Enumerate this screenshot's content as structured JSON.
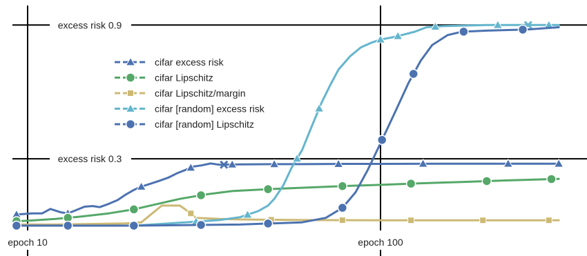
{
  "chart_data": {
    "type": "line",
    "x_scale": "log",
    "x_ticks": [
      {
        "value": 10,
        "label": "epoch 10"
      },
      {
        "value": 100,
        "label": "epoch 100"
      }
    ],
    "ylim": [
      0,
      1
    ],
    "reference_lines": [
      {
        "y": 0.9,
        "label": "excess risk 0.9"
      },
      {
        "y": 0.3,
        "label": "excess risk 0.3"
      }
    ],
    "legend_position": "upper-left",
    "series": [
      {
        "name": "cifar excess risk",
        "color": "#4c72b0",
        "marker": "triangle",
        "dashed": true,
        "points": [
          [
            9.3,
            0.05
          ],
          [
            10.3,
            0.055
          ],
          [
            11,
            0.055
          ],
          [
            11.6,
            0.075
          ],
          [
            12.4,
            0.06
          ],
          [
            13,
            0.055
          ],
          [
            13.5,
            0.065
          ],
          [
            14.5,
            0.085
          ],
          [
            15.3,
            0.088
          ],
          [
            16,
            0.083
          ],
          [
            17,
            0.098
          ],
          [
            18,
            0.115
          ],
          [
            19,
            0.14
          ],
          [
            20,
            0.16
          ],
          [
            21,
            0.175
          ],
          [
            22,
            0.185
          ],
          [
            23.5,
            0.2
          ],
          [
            25,
            0.215
          ],
          [
            26.5,
            0.235
          ],
          [
            28,
            0.25
          ],
          [
            29.5,
            0.265
          ],
          [
            31,
            0.27
          ],
          [
            33,
            0.279
          ],
          [
            35,
            0.273
          ],
          [
            40,
            0.275
          ],
          [
            50,
            0.276
          ],
          [
            60,
            0.276
          ],
          [
            80,
            0.277
          ],
          [
            100,
            0.277
          ],
          [
            150,
            0.278
          ],
          [
            250,
            0.278
          ],
          [
            320,
            0.278
          ]
        ],
        "markers_at": [
          9.3,
          13,
          21,
          29,
          38,
          50,
          76,
          132,
          230,
          320
        ],
        "cross_at": 36
      },
      {
        "name": "cifar Lipschitz",
        "color": "#55a868",
        "dashed": true,
        "marker": "circle",
        "points": [
          [
            9.3,
            0.02
          ],
          [
            10,
            0.022
          ],
          [
            12,
            0.03
          ],
          [
            14,
            0.04
          ],
          [
            17,
            0.055
          ],
          [
            20,
            0.073
          ],
          [
            23,
            0.095
          ],
          [
            27,
            0.12
          ],
          [
            32,
            0.14
          ],
          [
            38,
            0.155
          ],
          [
            50,
            0.165
          ],
          [
            65,
            0.172
          ],
          [
            80,
            0.178
          ],
          [
            100,
            0.183
          ],
          [
            130,
            0.19
          ],
          [
            170,
            0.196
          ],
          [
            230,
            0.203
          ],
          [
            320,
            0.21
          ]
        ],
        "markers_at": [
          9.3,
          13,
          20,
          31,
          48,
          78,
          122,
          200,
          305
        ]
      },
      {
        "name": "cifar Lipschitz/margin",
        "color": "#ccb974",
        "dashed": true,
        "marker": "square",
        "points": [
          [
            9.3,
            0.005
          ],
          [
            12,
            0.005
          ],
          [
            16,
            0.008
          ],
          [
            19,
            0.01
          ],
          [
            21,
            0.015
          ],
          [
            24,
            0.09
          ],
          [
            27,
            0.09
          ],
          [
            29,
            0.055
          ],
          [
            30,
            0.035
          ],
          [
            35,
            0.03
          ],
          [
            40,
            0.028
          ],
          [
            60,
            0.025
          ],
          [
            100,
            0.024
          ],
          [
            200,
            0.024
          ],
          [
            320,
            0.024
          ]
        ],
        "markers_at": [
          29,
          49,
          78,
          122,
          195,
          300
        ]
      },
      {
        "name": "cifar [random] excess risk",
        "color": "#64b5cd",
        "marker": "triangle",
        "dashed": true,
        "points": [
          [
            9.3,
            0.0
          ],
          [
            20,
            0.0
          ],
          [
            28,
            0.015
          ],
          [
            35,
            0.025
          ],
          [
            40,
            0.038
          ],
          [
            45,
            0.065
          ],
          [
            48,
            0.09
          ],
          [
            50,
            0.12
          ],
          [
            53,
            0.18
          ],
          [
            56,
            0.26
          ],
          [
            60,
            0.34
          ],
          [
            64,
            0.45
          ],
          [
            68,
            0.55
          ],
          [
            72,
            0.63
          ],
          [
            76,
            0.7
          ],
          [
            82,
            0.76
          ],
          [
            88,
            0.8
          ],
          [
            94,
            0.82
          ],
          [
            100,
            0.835
          ],
          [
            108,
            0.845
          ],
          [
            115,
            0.855
          ],
          [
            125,
            0.87
          ],
          [
            135,
            0.89
          ],
          [
            150,
            0.895
          ],
          [
            200,
            0.9
          ],
          [
            320,
            0.9
          ]
        ],
        "markers_at": [
          30,
          42,
          58,
          67,
          100,
          112,
          143,
          215,
          300
        ],
        "cross_at": 262
      },
      {
        "name": "cifar [random] Lipschitz",
        "color": "#4c72b0",
        "dashed": true,
        "marker": "circle",
        "points": [
          [
            9.3,
            0.0
          ],
          [
            20,
            0.0
          ],
          [
            40,
            0.005
          ],
          [
            60,
            0.015
          ],
          [
            70,
            0.035
          ],
          [
            78,
            0.08
          ],
          [
            85,
            0.15
          ],
          [
            92,
            0.25
          ],
          [
            100,
            0.37
          ],
          [
            110,
            0.51
          ],
          [
            120,
            0.64
          ],
          [
            130,
            0.74
          ],
          [
            140,
            0.81
          ],
          [
            155,
            0.855
          ],
          [
            170,
            0.87
          ],
          [
            200,
            0.875
          ],
          [
            260,
            0.88
          ],
          [
            320,
            0.89
          ]
        ],
        "markers_at": [
          9.3,
          13,
          20,
          31,
          48,
          78,
          101,
          124,
          172,
          253
        ]
      }
    ]
  }
}
